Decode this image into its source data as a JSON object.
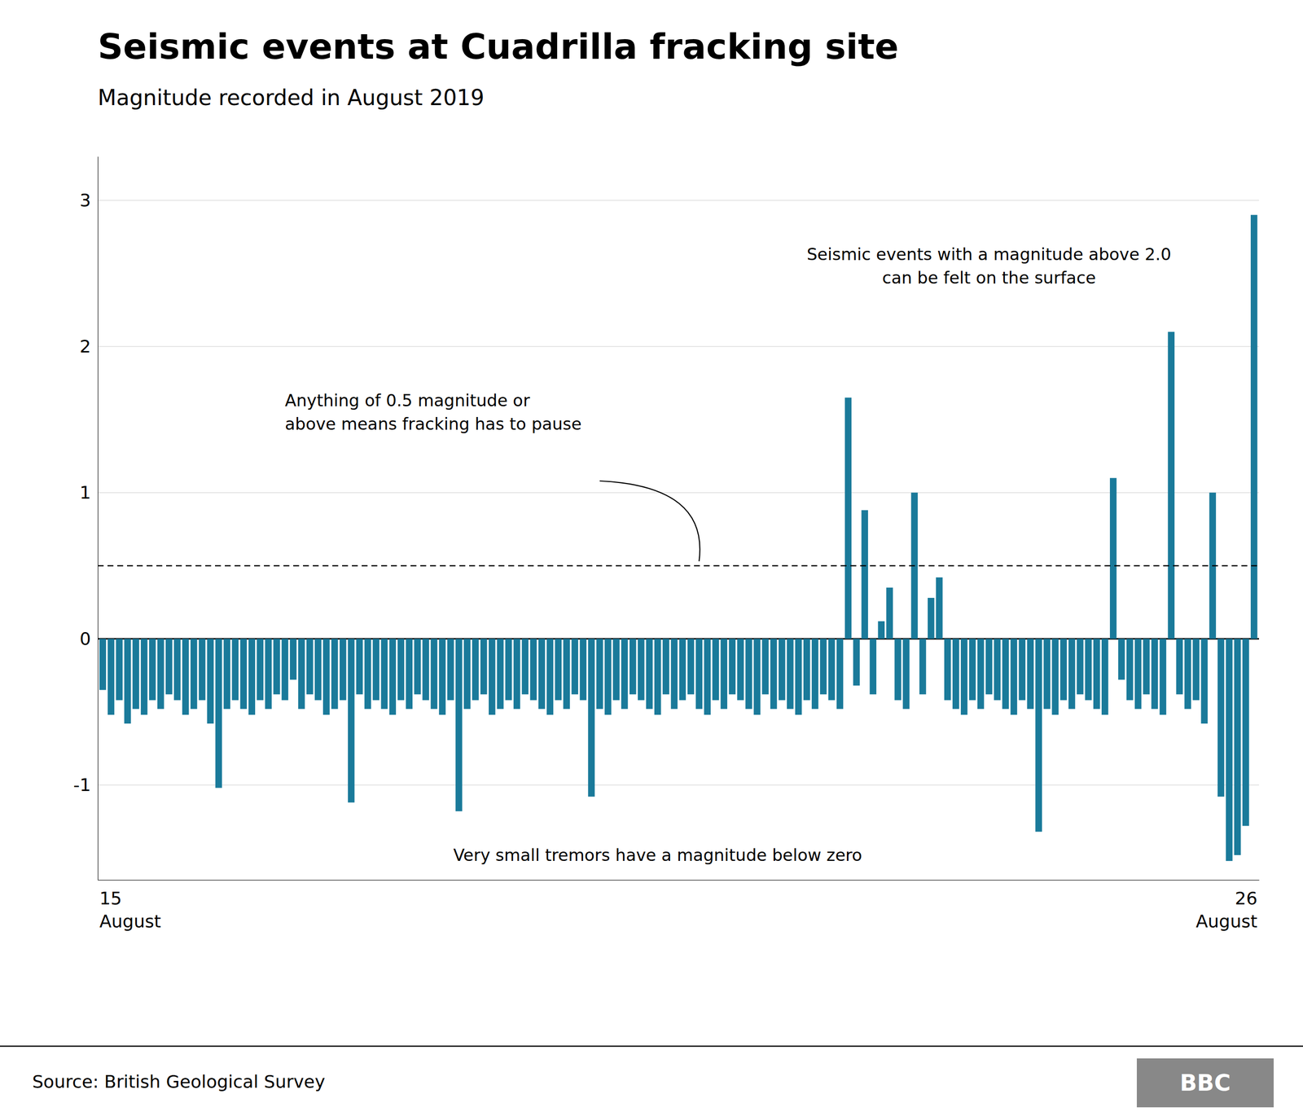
{
  "chart_data": {
    "type": "bar",
    "title": "Seismic events at Cuadrilla fracking site",
    "subtitle": "Magnitude recorded in August 2019",
    "source": "Source: British Geological Survey",
    "logo": "BBC",
    "annotations": [
      "Seismic events with a magnitude above 2.0\ncan be felt on the surface",
      "Anything of 0.5 magnitude or\nabove means fracking has to pause",
      "Very small tremors have a magnitude below zero"
    ],
    "color": "#1a7a9a",
    "threshold": 0.5,
    "ylim": [
      -1.65,
      3.3
    ],
    "yticks": [
      -1,
      0,
      1,
      2,
      3
    ],
    "grid": true,
    "categories": [
      "15\nAugust",
      null,
      null,
      null,
      null,
      null,
      null,
      null,
      null,
      null,
      null,
      null,
      null,
      null,
      null,
      null,
      null,
      null,
      null,
      null,
      null,
      null,
      null,
      null,
      null,
      null,
      null,
      null,
      null,
      null,
      null,
      null,
      null,
      null,
      null,
      null,
      null,
      null,
      null,
      null,
      null,
      null,
      null,
      null,
      null,
      null,
      null,
      null,
      null,
      null,
      null,
      null,
      null,
      null,
      null,
      null,
      null,
      null,
      null,
      null,
      null,
      null,
      null,
      null,
      null,
      null,
      null,
      null,
      null,
      null,
      null,
      null,
      null,
      null,
      null,
      null,
      null,
      null,
      null,
      null,
      null,
      null,
      null,
      null,
      null,
      null,
      null,
      null,
      null,
      null,
      null,
      null,
      null,
      null,
      null,
      null,
      null,
      null,
      null,
      null,
      null,
      null,
      null,
      null,
      null,
      null,
      null,
      null,
      null,
      null,
      null,
      null,
      null,
      null,
      null,
      null,
      null,
      null,
      null,
      null,
      null,
      null,
      null,
      null,
      null,
      null,
      null,
      null,
      null,
      null,
      null,
      null,
      null,
      null,
      null,
      null,
      null,
      null,
      null,
      "26\nAugust"
    ],
    "values": [
      -0.35,
      -0.52,
      -0.42,
      -0.58,
      -0.48,
      -0.52,
      -0.42,
      -0.48,
      -0.38,
      -0.42,
      -0.52,
      -0.48,
      -0.42,
      -0.58,
      -1.02,
      -0.48,
      -0.42,
      -0.48,
      -0.52,
      -0.42,
      -0.48,
      -0.38,
      -0.42,
      -0.28,
      -0.48,
      -0.38,
      -0.42,
      -0.52,
      -0.48,
      -0.42,
      -1.12,
      -0.38,
      -0.48,
      -0.42,
      -0.48,
      -0.52,
      -0.42,
      -0.48,
      -0.38,
      -0.42,
      -0.48,
      -0.52,
      -0.42,
      -1.18,
      -0.48,
      -0.42,
      -0.38,
      -0.52,
      -0.48,
      -0.42,
      -0.48,
      -0.38,
      -0.42,
      -0.48,
      -0.52,
      -0.42,
      -0.48,
      -0.38,
      -0.42,
      -1.08,
      -0.48,
      -0.52,
      -0.42,
      -0.48,
      -0.38,
      -0.42,
      -0.48,
      -0.52,
      -0.38,
      -0.48,
      -0.42,
      -0.38,
      -0.48,
      -0.52,
      -0.42,
      -0.48,
      -0.38,
      -0.42,
      -0.48,
      -0.52,
      -0.38,
      -0.48,
      -0.42,
      -0.48,
      -0.52,
      -0.42,
      -0.48,
      -0.38,
      -0.42,
      -0.48,
      1.65,
      -0.32,
      0.88,
      -0.38,
      0.12,
      0.35,
      -0.42,
      -0.48,
      1.0,
      -0.38,
      0.28,
      0.42,
      -0.42,
      -0.48,
      -0.52,
      -0.42,
      -0.48,
      -0.38,
      -0.42,
      -0.48,
      -0.52,
      -0.42,
      -0.48,
      -1.32,
      -0.48,
      -0.52,
      -0.42,
      -0.48,
      -0.38,
      -0.42,
      -0.48,
      -0.52,
      1.1,
      -0.28,
      -0.42,
      -0.48,
      -0.38,
      -0.48,
      -0.52,
      2.1,
      -0.38,
      -0.48,
      -0.42,
      -0.58,
      1.0,
      -1.08,
      -1.52,
      -1.48,
      -1.28,
      2.9
    ]
  }
}
